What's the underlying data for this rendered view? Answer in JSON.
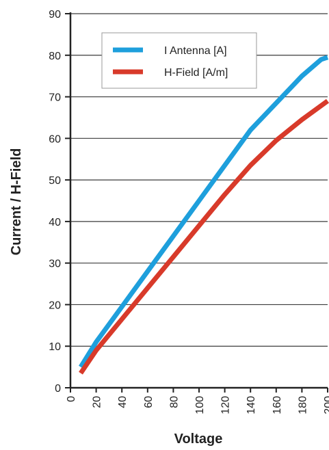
{
  "chart_data": {
    "type": "line",
    "xlabel": "Voltage",
    "ylabel": "Current / H-Field",
    "xlim": [
      0,
      200
    ],
    "ylim": [
      0,
      90
    ],
    "x_ticks": [
      "0",
      "20",
      "40",
      "60",
      "80",
      "100",
      "120",
      "140",
      "160",
      "180",
      "200"
    ],
    "y_ticks": [
      "0",
      "10",
      "20",
      "30",
      "40",
      "50",
      "60",
      "70",
      "80",
      "90"
    ],
    "grid": "horizontal",
    "legend_position": "top-left",
    "series": [
      {
        "name": "I Antenna [A]",
        "color": "#1e9fdc",
        "x": [
          8,
          20,
          40,
          60,
          80,
          100,
          120,
          140,
          160,
          180,
          195,
          200
        ],
        "y": [
          5,
          11,
          19.5,
          28,
          36.5,
          45,
          53.5,
          62,
          68.5,
          75,
          79,
          79.5
        ]
      },
      {
        "name": "H-Field [A/m]",
        "color": "#d83a2a",
        "x": [
          8,
          20,
          40,
          60,
          80,
          100,
          120,
          140,
          160,
          180,
          200
        ],
        "y": [
          3.5,
          9,
          16.5,
          24,
          31.5,
          39,
          46.5,
          53.5,
          59.5,
          64.5,
          69
        ]
      }
    ]
  }
}
